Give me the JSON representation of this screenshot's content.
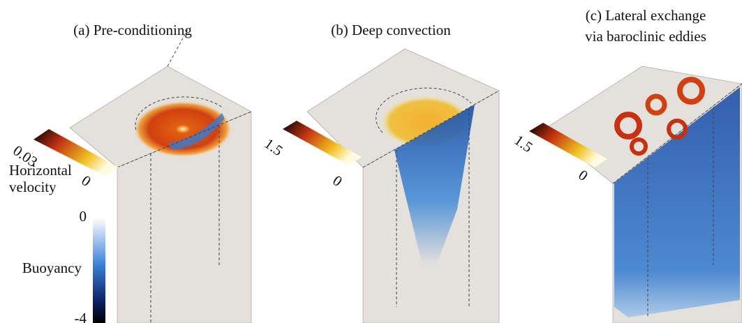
{
  "panels": [
    {
      "title": [
        "(a) Pre-conditioning"
      ],
      "colorbar": {
        "max": "0.03",
        "min": "0"
      }
    },
    {
      "title": [
        "(b) Deep convection"
      ],
      "colorbar": {
        "max": "1.5",
        "min": "0"
      }
    },
    {
      "title": [
        "(c) Lateral exchange",
        "via baroclinic eddies"
      ],
      "colorbar": {
        "max": "1.5",
        "min": "0"
      }
    }
  ],
  "horizontal_velocity_label": [
    "Horizontal",
    "velocity"
  ],
  "buoyancy_colorbar": {
    "label": "Buoyancy",
    "max": "0",
    "min": "-4"
  }
}
